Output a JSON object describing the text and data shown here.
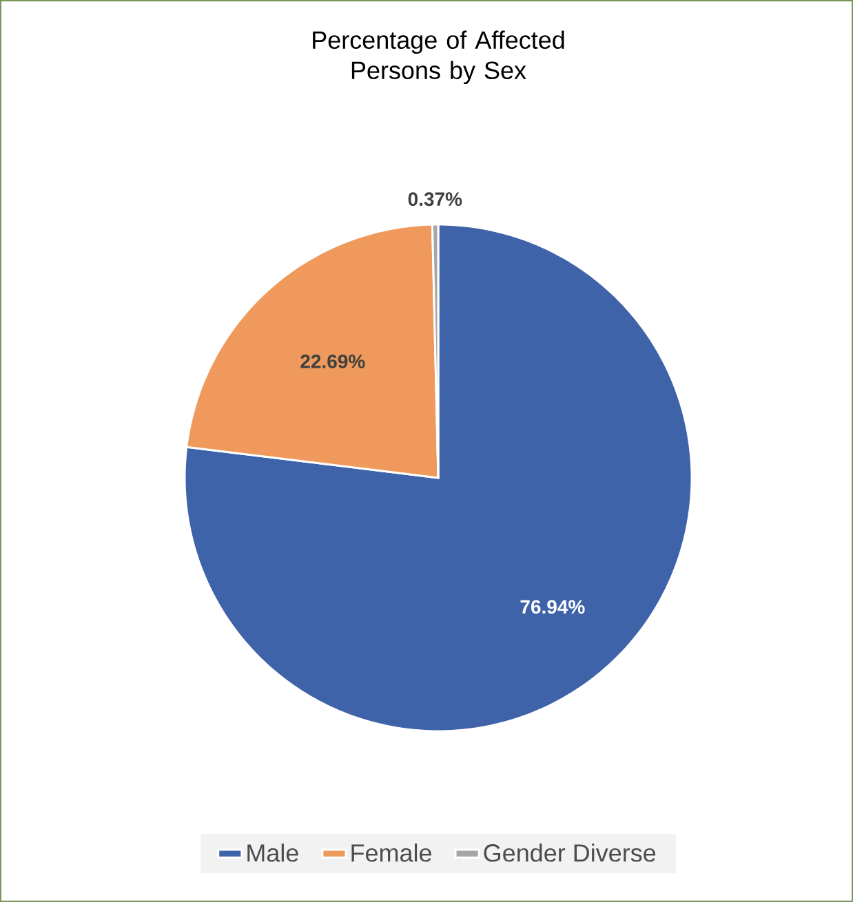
{
  "chart_data": {
    "type": "pie",
    "title": "Percentage of Affected Persons by Sex",
    "categories": [
      "Male",
      "Female",
      "Gender Diverse"
    ],
    "values": [
      76.94,
      22.69,
      0.37
    ],
    "colors": [
      "#3f63a8",
      "#ef9a5c",
      "#a6a6a6"
    ],
    "value_labels": [
      "76.94%",
      "22.69%",
      "0.37%"
    ],
    "legend": "bottom"
  }
}
